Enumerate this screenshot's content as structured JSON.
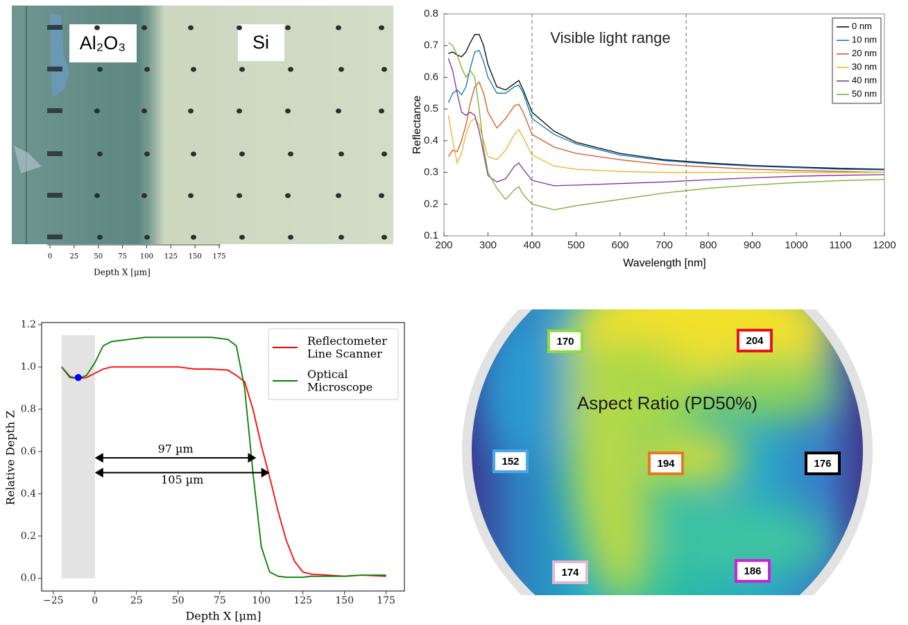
{
  "chart_data": [
    {
      "type": "image",
      "annotations": [
        "Al₂O₃",
        "Si"
      ],
      "xlabel": "Depth X [μm]",
      "xlim": [
        0,
        175
      ],
      "xticks": [
        0,
        25,
        50,
        75,
        100,
        125,
        150,
        175
      ]
    },
    {
      "type": "line",
      "xlabel": "Wavelength [nm]",
      "ylabel": "Reflectance",
      "annotation": "Visible light range",
      "vlines": [
        400,
        750
      ],
      "xlim": [
        200,
        1200
      ],
      "xticks": [
        200,
        300,
        400,
        500,
        600,
        700,
        800,
        900,
        1000,
        1100,
        1200
      ],
      "ylim": [
        0.1,
        0.8
      ],
      "yticks": [
        0.1,
        0.2,
        0.3,
        0.4,
        0.5,
        0.6,
        0.7,
        0.8
      ],
      "legend": "upper right",
      "x": [
        210,
        220,
        230,
        240,
        250,
        260,
        270,
        280,
        290,
        300,
        320,
        340,
        360,
        370,
        380,
        400,
        450,
        500,
        600,
        700,
        800,
        900,
        1000,
        1100,
        1200
      ],
      "series": [
        {
          "name": "0 nm",
          "color": "#000000",
          "values": [
            0.675,
            0.68,
            0.67,
            0.665,
            0.68,
            0.71,
            0.735,
            0.735,
            0.7,
            0.64,
            0.57,
            0.56,
            0.58,
            0.59,
            0.56,
            0.49,
            0.43,
            0.395,
            0.36,
            0.34,
            0.33,
            0.322,
            0.317,
            0.313,
            0.31
          ]
        },
        {
          "name": "10 nm",
          "color": "#0072bd",
          "values": [
            0.52,
            0.55,
            0.56,
            0.545,
            0.57,
            0.63,
            0.68,
            0.685,
            0.65,
            0.6,
            0.55,
            0.55,
            0.57,
            0.575,
            0.55,
            0.47,
            0.42,
            0.39,
            0.355,
            0.337,
            0.327,
            0.32,
            0.315,
            0.31,
            0.308
          ]
        },
        {
          "name": "20 nm",
          "color": "#d95319",
          "values": [
            0.35,
            0.37,
            0.365,
            0.4,
            0.45,
            0.52,
            0.57,
            0.585,
            0.55,
            0.49,
            0.44,
            0.47,
            0.51,
            0.515,
            0.49,
            0.42,
            0.38,
            0.36,
            0.34,
            0.325,
            0.317,
            0.31,
            0.306,
            0.303,
            0.3
          ]
        },
        {
          "name": "30 nm",
          "color": "#edb120",
          "values": [
            0.48,
            0.4,
            0.33,
            0.36,
            0.42,
            0.46,
            0.47,
            0.45,
            0.4,
            0.35,
            0.34,
            0.37,
            0.42,
            0.435,
            0.41,
            0.355,
            0.32,
            0.31,
            0.303,
            0.3,
            0.3,
            0.3,
            0.3,
            0.3,
            0.3
          ]
        },
        {
          "name": "40 nm",
          "color": "#7e2f8e",
          "values": [
            0.66,
            0.62,
            0.55,
            0.49,
            0.48,
            0.49,
            0.48,
            0.43,
            0.36,
            0.29,
            0.27,
            0.28,
            0.32,
            0.33,
            0.31,
            0.275,
            0.258,
            0.26,
            0.265,
            0.27,
            0.277,
            0.283,
            0.288,
            0.291,
            0.293
          ]
        },
        {
          "name": "50 nm",
          "color": "#77ac30",
          "values": [
            0.71,
            0.7,
            0.67,
            0.63,
            0.6,
            0.62,
            0.6,
            0.5,
            0.38,
            0.3,
            0.25,
            0.215,
            0.245,
            0.255,
            0.23,
            0.2,
            0.182,
            0.195,
            0.215,
            0.235,
            0.25,
            0.26,
            0.268,
            0.274,
            0.278
          ]
        }
      ]
    },
    {
      "type": "line",
      "xlabel": "Depth X [μm]",
      "ylabel": "Relative Depth Z",
      "xlim": [
        -32,
        186
      ],
      "xticks": [
        {
          "value": -25,
          "label": "−25"
        },
        0,
        25,
        50,
        75,
        100,
        125,
        150,
        175
      ],
      "ylim": [
        -0.06,
        1.21
      ],
      "yticks": [
        {
          "value": 0,
          "label": "0.0"
        },
        0.2,
        0.4,
        0.6,
        0.8,
        {
          "value": 1,
          "label": "1.0"
        },
        1.2
      ],
      "legend": "upper right",
      "shade": {
        "x": [
          -20,
          0
        ],
        "y": [
          0,
          1.15
        ]
      },
      "marker": {
        "x": -10,
        "y": 0.95,
        "color": "#0000ff"
      },
      "arrows": [
        {
          "text": "97 µm",
          "x": [
            0,
            97
          ],
          "y": 0.57
        },
        {
          "text": "105 µm",
          "x": [
            0,
            105
          ],
          "y": 0.5
        }
      ],
      "x": [
        -20,
        -15,
        -10,
        -5,
        0,
        5,
        10,
        20,
        30,
        40,
        50,
        60,
        70,
        80,
        85,
        90,
        95,
        100,
        105,
        110,
        115,
        120,
        125,
        130,
        140,
        150,
        160,
        175
      ],
      "series": [
        {
          "name": "Reflectometer\nLine Scanner",
          "color": "#ff0000",
          "values": [
            1.0,
            0.955,
            0.945,
            0.95,
            0.97,
            0.99,
            1.0,
            1.0,
            1.0,
            1.0,
            1.0,
            0.99,
            0.99,
            0.985,
            0.96,
            0.93,
            0.8,
            0.63,
            0.48,
            0.32,
            0.18,
            0.08,
            0.03,
            0.02,
            0.015,
            0.01,
            0.015,
            0.01
          ]
        },
        {
          "name": "Optical\nMicroscope",
          "color": "#008000",
          "values": [
            1.0,
            0.95,
            0.945,
            0.96,
            1.02,
            1.1,
            1.12,
            1.13,
            1.14,
            1.14,
            1.14,
            1.14,
            1.14,
            1.13,
            1.1,
            0.9,
            0.5,
            0.15,
            0.03,
            0.01,
            0.005,
            0.005,
            0.005,
            0.01,
            0.01,
            0.01,
            0.015,
            0.015
          ]
        }
      ]
    },
    {
      "type": "wafer",
      "title": "Aspect Ratio (PD50%)",
      "values": [
        170,
        204,
        152,
        194,
        176,
        174,
        186
      ],
      "colors": [
        "#8fdc3c",
        "#e8141c",
        "#4aa8e8",
        "#e87a1c",
        "#000000",
        "#e8b4d0",
        "#d020d8"
      ]
    }
  ]
}
